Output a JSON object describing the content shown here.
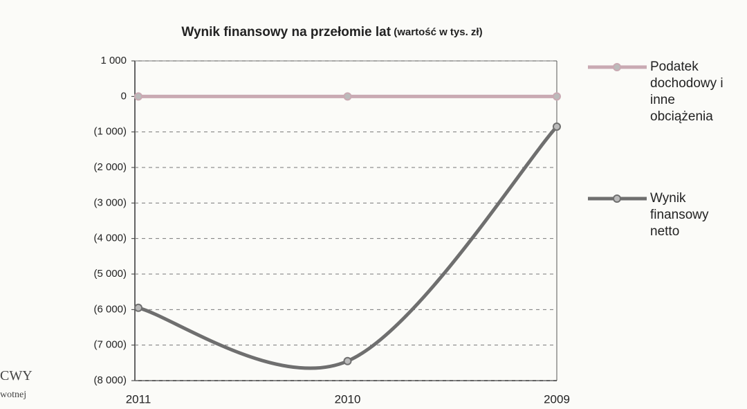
{
  "chart_data": {
    "type": "line",
    "title": "Wynik finansowy na przełomie lat",
    "subtitle": "(wartość w tys. zł)",
    "categories": [
      "2011",
      "2010",
      "2009"
    ],
    "series": [
      {
        "name": "Podatek dochodowy i inne obciążenia",
        "color": "#c9aab3",
        "values": [
          0,
          0,
          0
        ]
      },
      {
        "name": "Wynik finansowy netto",
        "color": "#6f6f6f",
        "values": [
          -5950,
          -7450,
          -850
        ]
      }
    ],
    "ylim": [
      -8000,
      1000
    ],
    "yticks": [
      {
        "value": 1000,
        "label": "1 000"
      },
      0,
      {
        "value": -1000,
        "label": "(1 000)"
      },
      {
        "value": -2000,
        "label": "(2 000)"
      },
      {
        "value": -3000,
        "label": "(3 000)"
      },
      {
        "value": -4000,
        "label": "(4 000)"
      },
      {
        "value": -5000,
        "label": "(5 000)"
      },
      {
        "value": -6000,
        "label": "(6 000)"
      },
      {
        "value": -7000,
        "label": "(7 000)"
      },
      {
        "value": -8000,
        "label": "(8 000)"
      }
    ],
    "grid": true,
    "smooth": true,
    "legend": "right"
  },
  "margin_text": [
    "CWY",
    "wotnej"
  ]
}
